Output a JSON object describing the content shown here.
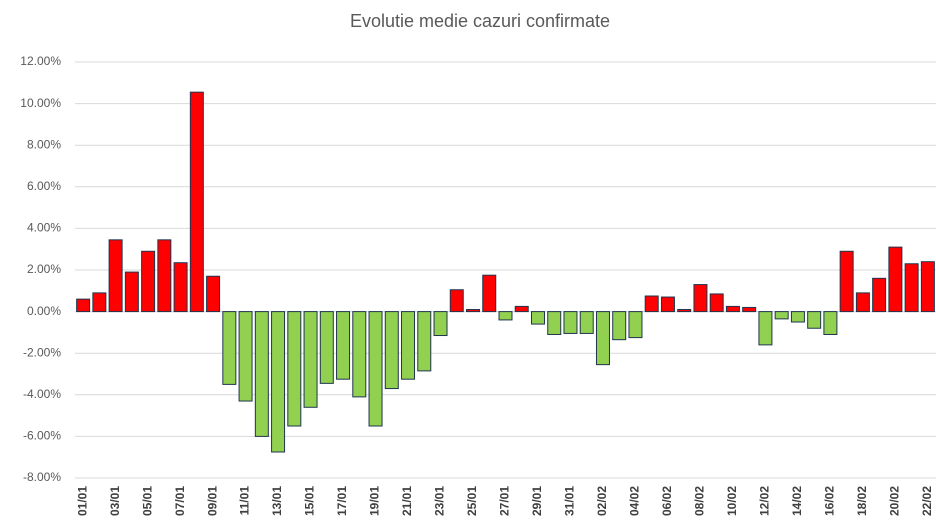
{
  "chart_data": {
    "type": "bar",
    "title": "Evolutie medie cazuri confirmate",
    "categories": [
      "01/01",
      null,
      "03/01",
      null,
      "05/01",
      null,
      "07/01",
      null,
      "09/01",
      null,
      "11/01",
      null,
      "13/01",
      null,
      "15/01",
      null,
      "17/01",
      null,
      "19/01",
      null,
      "21/01",
      null,
      "23/01",
      null,
      "25/01",
      null,
      "27/01",
      null,
      "29/01",
      null,
      "31/01",
      null,
      "02/02",
      null,
      "04/02",
      null,
      "06/02",
      null,
      "08/02",
      null,
      "10/02",
      null,
      "12/02",
      null,
      "14/02",
      null,
      "16/02",
      null,
      "18/02",
      null,
      "20/02",
      null,
      "22/02"
    ],
    "values": [
      0.6,
      0.9,
      3.45,
      1.9,
      2.9,
      3.45,
      2.35,
      10.55,
      1.7,
      -3.5,
      -4.3,
      -6.0,
      -6.75,
      -5.5,
      -4.6,
      -3.45,
      -3.25,
      -4.1,
      -5.5,
      -3.7,
      -3.25,
      -2.85,
      -1.15,
      1.05,
      0.1,
      1.75,
      -0.4,
      0.25,
      -0.6,
      -1.1,
      -1.05,
      -1.05,
      -2.55,
      -1.35,
      -1.25,
      0.75,
      0.7,
      0.1,
      1.3,
      0.85,
      0.25,
      0.2,
      -1.6,
      -0.35,
      -0.5,
      -0.8,
      -1.1,
      2.9,
      0.9,
      1.6,
      3.1,
      2.3,
      2.4
    ],
    "positive_color": "#ff0000",
    "negative_color": "#92d050",
    "edge_color": "#1f3550",
    "ylim": [
      -8,
      12
    ],
    "yticks": [
      {
        "value": -8,
        "label": "-8.00%"
      },
      {
        "value": -6,
        "label": "-6.00%"
      },
      {
        "value": -4,
        "label": "-4.00%"
      },
      {
        "value": -2,
        "label": "-2.00%"
      },
      {
        "value": 0,
        "label": "0.00%"
      },
      {
        "value": 2,
        "label": "2.00%"
      },
      {
        "value": 4,
        "label": "4.00%"
      },
      {
        "value": 6,
        "label": "6.00%"
      },
      {
        "value": 8,
        "label": "8.00%"
      },
      {
        "value": 10,
        "label": "10.00%"
      },
      {
        "value": 12,
        "label": "12.00%"
      }
    ],
    "grid": true
  }
}
